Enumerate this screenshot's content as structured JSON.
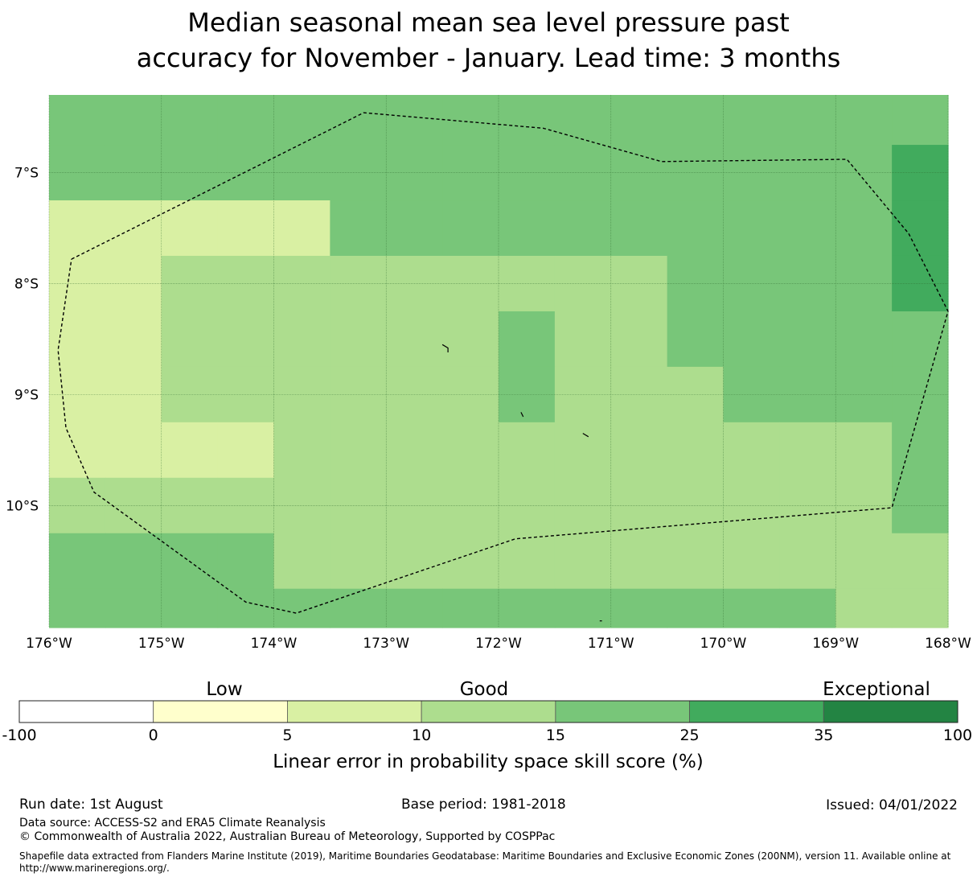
{
  "title": {
    "line1": "Median seasonal mean sea level pressure past",
    "line2": "accuracy for November - January. Lead time: 3 months"
  },
  "map": {
    "lon_labels": [
      "176°W",
      "175°W",
      "174°W",
      "173°W",
      "172°W",
      "171°W",
      "170°W",
      "169°W",
      "168°W"
    ],
    "lat_labels": [
      "7°S",
      "8°S",
      "9°S",
      "10°S"
    ],
    "lon_range": [
      -176,
      -168
    ],
    "lat_range": [
      -6.3,
      -11.1
    ],
    "skill_grid": {
      "cell_size_deg": 0.5,
      "lat_band_edges_deg": [
        -6.3,
        -6.75,
        -7.25,
        -7.75,
        -8.25,
        -8.75,
        -9.25,
        -9.75,
        -10.25,
        -10.75,
        -11.1
      ],
      "lon_start_deg": -176,
      "ncols": 16,
      "category_index_rows": [
        [
          4,
          4,
          4,
          4,
          4,
          4,
          4,
          4,
          4,
          4,
          4,
          4,
          4,
          4,
          4,
          4
        ],
        [
          4,
          4,
          4,
          4,
          4,
          4,
          4,
          4,
          4,
          4,
          4,
          4,
          4,
          4,
          4,
          5
        ],
        [
          2,
          2,
          2,
          2,
          2,
          4,
          4,
          4,
          4,
          4,
          4,
          4,
          4,
          4,
          4,
          5
        ],
        [
          2,
          2,
          3,
          3,
          3,
          3,
          3,
          3,
          3,
          3,
          3,
          4,
          4,
          4,
          4,
          5
        ],
        [
          2,
          2,
          3,
          3,
          3,
          3,
          3,
          3,
          4,
          3,
          3,
          4,
          4,
          4,
          4,
          4
        ],
        [
          2,
          2,
          3,
          3,
          3,
          3,
          3,
          3,
          4,
          3,
          3,
          3,
          4,
          4,
          4,
          4
        ],
        [
          2,
          2,
          2,
          2,
          3,
          3,
          3,
          3,
          3,
          3,
          3,
          3,
          3,
          3,
          3,
          4
        ],
        [
          3,
          3,
          3,
          3,
          3,
          3,
          3,
          3,
          3,
          3,
          3,
          3,
          3,
          3,
          3,
          4
        ],
        [
          4,
          4,
          4,
          4,
          3,
          3,
          3,
          3,
          3,
          3,
          3,
          3,
          3,
          3,
          3,
          3
        ],
        [
          4,
          4,
          4,
          4,
          4,
          4,
          4,
          4,
          4,
          4,
          4,
          4,
          4,
          4,
          3,
          3
        ]
      ]
    },
    "eez_boundary": [
      [
        -175.8,
        -7.78
      ],
      [
        -173.2,
        -6.46
      ],
      [
        -171.6,
        -6.6
      ],
      [
        -170.55,
        -6.9
      ],
      [
        -168.9,
        -6.88
      ],
      [
        -168.35,
        -7.55
      ],
      [
        -168.0,
        -8.25
      ],
      [
        -168.5,
        -10.02
      ],
      [
        -171.85,
        -10.3
      ],
      [
        -173.8,
        -10.97
      ],
      [
        -174.25,
        -10.87
      ],
      [
        -175.6,
        -9.88
      ],
      [
        -175.85,
        -9.3
      ],
      [
        -175.92,
        -8.6
      ],
      [
        -175.8,
        -7.78
      ]
    ],
    "islands": [
      [
        [
          -172.5,
          -8.55
        ],
        [
          -172.45,
          -8.58
        ],
        [
          -172.45,
          -8.62
        ]
      ],
      [
        [
          -171.8,
          -9.16
        ],
        [
          -171.78,
          -9.2
        ]
      ],
      [
        [
          -171.25,
          -9.35
        ],
        [
          -171.2,
          -9.38
        ]
      ],
      [
        [
          -171.1,
          -11.04
        ],
        [
          -171.08,
          -11.04
        ]
      ]
    ]
  },
  "colorbar": {
    "categories": [
      "Low",
      "Good",
      "Exceptional"
    ],
    "colors": [
      "#ffffff",
      "#ffffcc",
      "#d9f0a3",
      "#addd8e",
      "#78c679",
      "#41ab5d",
      "#238443"
    ],
    "ticks": [
      "-100",
      "0",
      "5",
      "10",
      "15",
      "25",
      "35",
      "100"
    ],
    "label": "Linear error in probability space skill score (%)"
  },
  "footer": {
    "run_date": "Run date: 1st August",
    "base_period": "Base period: 1981-2018",
    "issued": "Issued: 04/01/2022",
    "data_source": "Data source: ACCESS-S2 and ERA5 Climate Reanalysis",
    "copyright": "© Commonwealth of Australia 2022, Australian Bureau of Meteorology, Supported by COSPPac",
    "shapefile_line1": "Shapefile data extracted from Flanders Marine Institute (2019), Maritime Boundaries Geodatabase: Maritime Boundaries and Exclusive Economic Zones (200NM), version 11. Available online at",
    "shapefile_line2": "http://www.marineregions.org/."
  }
}
